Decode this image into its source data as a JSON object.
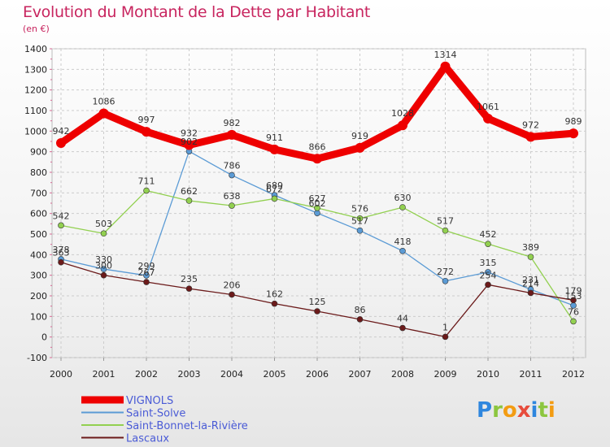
{
  "header": {
    "title": "Evolution du Montant de la Dette par Habitant",
    "subtitle": "(en €)"
  },
  "logo": {
    "text": "Proxiti"
  },
  "chart_data": {
    "type": "line",
    "title": "Evolution du Montant de la Dette par Habitant",
    "subtitle": "(en €)",
    "xlabel": "",
    "ylabel": "",
    "categories": [
      "2000",
      "2001",
      "2002",
      "2003",
      "2004",
      "2005",
      "2006",
      "2007",
      "2008",
      "2009",
      "2010",
      "2011",
      "2012"
    ],
    "ylim": [
      -100,
      1400
    ],
    "yticks": [
      -100,
      0,
      100,
      200,
      300,
      400,
      500,
      600,
      700,
      800,
      900,
      1000,
      1100,
      1200,
      1300,
      1400
    ],
    "grid": true,
    "legend_position": "bottom-left",
    "series": [
      {
        "name": "VIGNOLS",
        "color": "#ee0000",
        "values": [
          942,
          1086,
          997,
          932,
          982,
          911,
          866,
          919,
          1028,
          1314,
          1061,
          972,
          989
        ],
        "labels": [
          "942",
          "1086",
          "997",
          "932",
          "982",
          "911",
          "866",
          "919",
          "1028",
          "1314",
          "1061",
          "972",
          "989"
        ]
      },
      {
        "name": "Saint-Solve",
        "color": "#5b9bd5",
        "values": [
          378,
          330,
          299,
          902,
          786,
          689,
          602,
          517,
          418,
          272,
          315,
          231,
          153
        ],
        "labels": [
          "378",
          "330",
          "299",
          "902",
          "786",
          "689",
          "602",
          "517",
          "418",
          "272",
          "315",
          "231",
          "153"
        ]
      },
      {
        "name": "Saint-Bonnet-la-Rivière",
        "color": "#92d050",
        "values": [
          542,
          503,
          711,
          662,
          638,
          672,
          627,
          576,
          630,
          517,
          452,
          389,
          76
        ],
        "labels": [
          "542",
          "503",
          "711",
          "662",
          "638",
          "672",
          "627",
          "576",
          "630",
          "517",
          "452",
          "389",
          "76"
        ]
      },
      {
        "name": "Lascaux",
        "color": "#6b1a1a",
        "values": [
          363,
          300,
          267,
          235,
          206,
          162,
          125,
          86,
          44,
          1,
          254,
          214,
          179
        ],
        "labels": [
          "363",
          "300",
          "267",
          "235",
          "206",
          "162",
          "125",
          "86",
          "44",
          "1",
          "254",
          "214",
          "179"
        ]
      }
    ]
  }
}
